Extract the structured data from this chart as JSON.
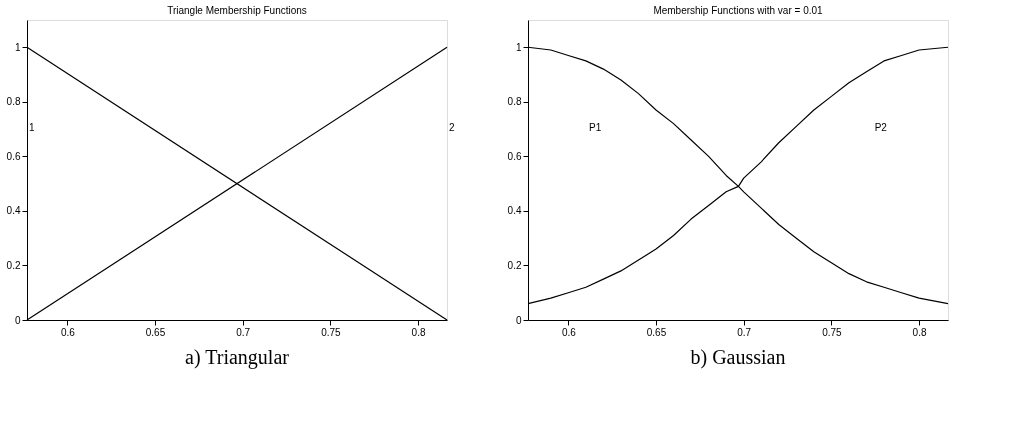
{
  "chart_data": [
    {
      "type": "line",
      "title": "Triangle Membership Functions",
      "x": [
        0.577,
        0.8165
      ],
      "series": [
        {
          "color": "#000000",
          "values": [
            1,
            0
          ]
        },
        {
          "color": "#000000",
          "values": [
            0,
            1
          ]
        }
      ],
      "xlim": [
        0.577,
        0.8165
      ],
      "xticks": [
        0.6,
        0.65,
        0.7,
        0.75,
        0.8
      ],
      "ylim": [
        0,
        1.1
      ],
      "yticks": [
        0,
        0.2,
        0.4,
        0.6,
        0.8,
        1
      ],
      "grid": false,
      "line_style": "solid",
      "annotations": [
        "1",
        "2",
        "a) Triangular"
      ]
    },
    {
      "type": "line",
      "title": "Membership Functions with var = 0.01",
      "x": [
        0.577,
        0.59,
        0.6,
        0.61,
        0.62,
        0.63,
        0.64,
        0.65,
        0.66,
        0.67,
        0.68,
        0.69,
        0.697,
        0.7,
        0.71,
        0.72,
        0.73,
        0.74,
        0.75,
        0.76,
        0.77,
        0.78,
        0.79,
        0.8,
        0.8165
      ],
      "series": [
        {
          "color": "#000000",
          "values": [
            1.0,
            0.99,
            0.97,
            0.95,
            0.92,
            0.88,
            0.83,
            0.77,
            0.72,
            0.66,
            0.6,
            0.53,
            0.49,
            0.47,
            0.41,
            0.35,
            0.3,
            0.25,
            0.21,
            0.17,
            0.14,
            0.12,
            0.1,
            0.08,
            0.06
          ]
        },
        {
          "color": "#000000",
          "values": [
            0.06,
            0.08,
            0.1,
            0.12,
            0.15,
            0.18,
            0.22,
            0.26,
            0.31,
            0.37,
            0.42,
            0.47,
            0.49,
            0.52,
            0.58,
            0.65,
            0.71,
            0.77,
            0.82,
            0.87,
            0.91,
            0.95,
            0.97,
            0.99,
            1.0
          ]
        }
      ],
      "xlim": [
        0.577,
        0.8165
      ],
      "xticks": [
        0.6,
        0.65,
        0.7,
        0.75,
        0.8
      ],
      "ylim": [
        0,
        1.1
      ],
      "yticks": [
        0,
        0.2,
        0.4,
        0.6,
        0.8,
        1
      ],
      "grid": false,
      "line_style": "solid",
      "annotations": [
        "P1",
        "P2",
        "b) Gaussian"
      ]
    }
  ]
}
